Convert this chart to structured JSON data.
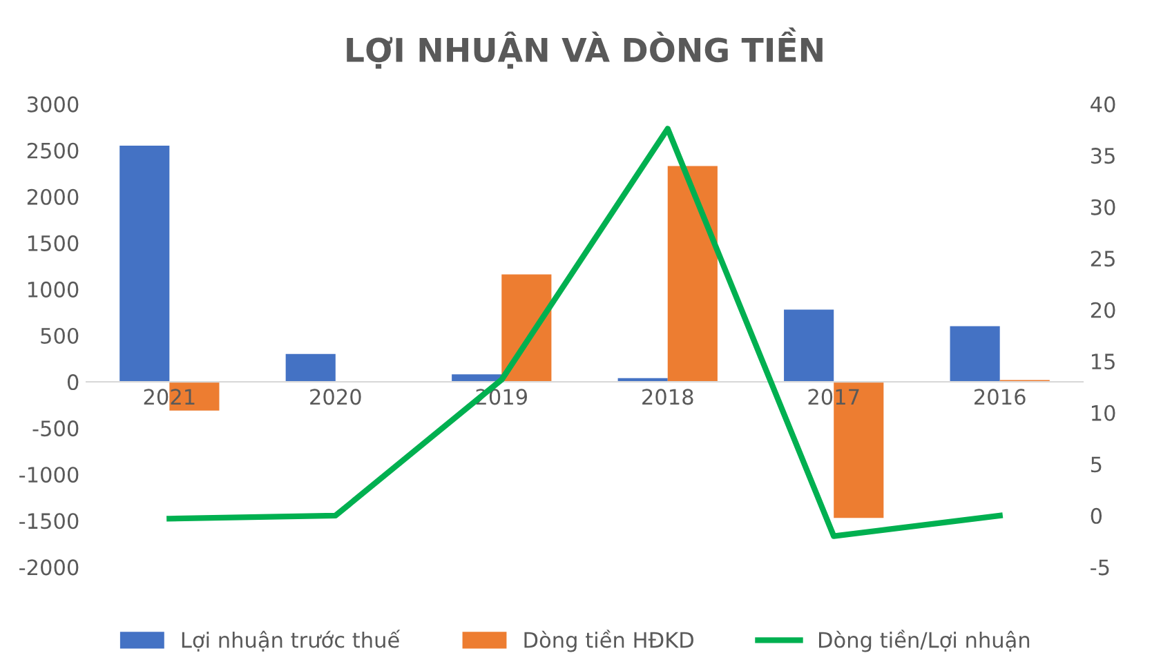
{
  "chart_data": {
    "type": "bar",
    "title": "LỢI NHUẬN VÀ DÒNG TIỀN",
    "categories": [
      "2021",
      "2020",
      "2019",
      "2018",
      "2017",
      "2016"
    ],
    "series": [
      {
        "name": "Lợi nhuận trước thuế",
        "color": "#4472c4",
        "values": [
          2550,
          300,
          80,
          40,
          780,
          600
        ]
      },
      {
        "name": "Dòng tiền HĐKD",
        "color": "#ed7d31",
        "values": [
          -310,
          0,
          1160,
          2330,
          -1470,
          20
        ]
      },
      {
        "name": "Dòng tiền/Lợi nhuận",
        "color": "#00b050",
        "type": "line",
        "axis": "y2",
        "values": [
          -0.3,
          0,
          13.2,
          37.6,
          -2.0,
          0
        ]
      }
    ],
    "ylim": [
      -2000,
      3000
    ],
    "yticks": [
      -2000,
      -1500,
      -1000,
      -500,
      0,
      500,
      1000,
      1500,
      2000,
      2500,
      3000
    ],
    "y2lim": [
      -5,
      40
    ],
    "y2ticks": [
      -5,
      0,
      5,
      10,
      15,
      20,
      25,
      30,
      35,
      40
    ],
    "grid": false,
    "legend": "bottom",
    "marker": "none",
    "line_style": "solid"
  }
}
